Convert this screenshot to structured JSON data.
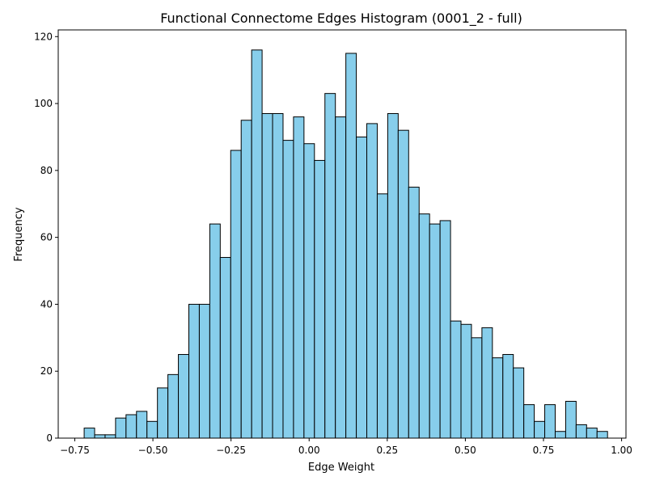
{
  "chart_data": {
    "type": "bar",
    "title": "Functional Connectome Edges Histogram (0001_2 - full)",
    "xlabel": "Edge Weight",
    "ylabel": "Frequency",
    "bin_start": -0.72,
    "bin_width": 0.0335,
    "values": [
      3,
      1,
      1,
      6,
      7,
      8,
      5,
      15,
      19,
      25,
      40,
      40,
      64,
      54,
      86,
      95,
      116,
      97,
      97,
      89,
      96,
      88,
      83,
      103,
      96,
      115,
      90,
      94,
      73,
      97,
      92,
      75,
      67,
      64,
      65,
      35,
      34,
      30,
      33,
      24,
      25,
      21,
      10,
      5,
      10,
      2,
      11,
      4,
      3,
      2
    ],
    "xlim": [
      -0.803,
      1.014
    ],
    "ylim": [
      0,
      122
    ],
    "xticks": [
      -0.75,
      -0.5,
      -0.25,
      0.0,
      0.25,
      0.5,
      0.75,
      1.0
    ],
    "xtick_labels": [
      "−0.75",
      "−0.50",
      "−0.25",
      "0.00",
      "0.25",
      "0.50",
      "0.75",
      "1.00"
    ],
    "yticks": [
      0,
      20,
      40,
      60,
      80,
      100,
      120
    ],
    "ytick_labels": [
      "0",
      "20",
      "40",
      "60",
      "80",
      "100",
      "120"
    ],
    "bar_color": "#87CEEB",
    "edge_color": "#000000",
    "grid": false,
    "legend": "none"
  }
}
